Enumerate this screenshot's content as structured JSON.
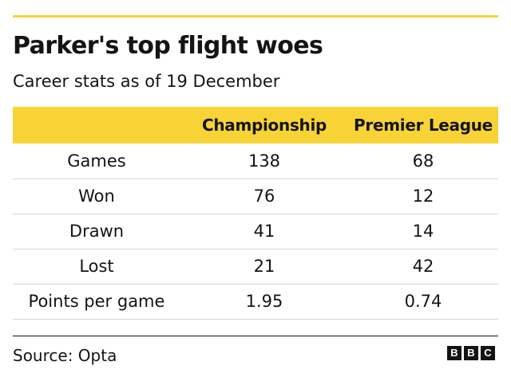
{
  "header": {
    "title": "Parker's top flight woes",
    "subtitle": "Career stats as of 19 December"
  },
  "colors": {
    "accent": "#f8d336",
    "text": "#141414",
    "row_divider": "#d6d6d6"
  },
  "footer": {
    "source": "Source: Opta",
    "logo": [
      "B",
      "B",
      "C"
    ]
  },
  "chart_data": {
    "type": "table",
    "title": "Parker's top flight woes",
    "subtitle": "Career stats as of 19 December",
    "columns": [
      "",
      "Championship",
      "Premier League"
    ],
    "rows": [
      {
        "label": "Games",
        "values": [
          "138",
          "68"
        ]
      },
      {
        "label": "Won",
        "values": [
          "76",
          "12"
        ]
      },
      {
        "label": "Drawn",
        "values": [
          "41",
          "14"
        ]
      },
      {
        "label": "Lost",
        "values": [
          "21",
          "42"
        ]
      },
      {
        "label": "Points per game",
        "values": [
          "1.95",
          "0.74"
        ]
      }
    ]
  }
}
